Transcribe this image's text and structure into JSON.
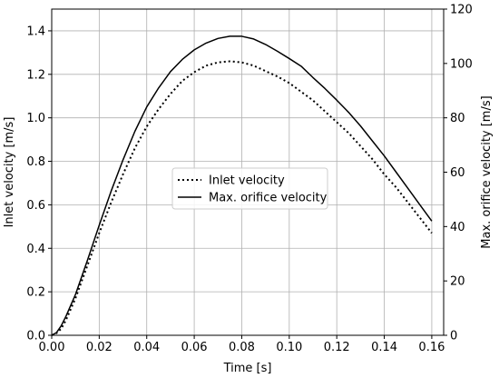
{
  "chart_data": {
    "type": "line",
    "xlabel": "Time [s]",
    "ylabel_left": "Inlet velocity [m/s]",
    "ylabel_right": "Max. orifice velocity [m/s]",
    "xlim": [
      0.0,
      0.165
    ],
    "ylim_left": [
      0.0,
      1.5
    ],
    "ylim_right": [
      0,
      120
    ],
    "x_ticks": [
      "0.00",
      "0.02",
      "0.04",
      "0.06",
      "0.08",
      "0.10",
      "0.12",
      "0.14",
      "0.16"
    ],
    "y_left_ticks": [
      "0.0",
      "0.2",
      "0.4",
      "0.6",
      "0.8",
      "1.0",
      "1.2",
      "1.4"
    ],
    "y_right_ticks": [
      "0",
      "20",
      "40",
      "60",
      "80",
      "100",
      "120"
    ],
    "grid": true,
    "legend_position": "center",
    "series": [
      {
        "name": "Inlet velocity",
        "axis": "left",
        "style": "dotted",
        "color": "#000000",
        "x": [
          0.0,
          0.002,
          0.004,
          0.006,
          0.008,
          0.01,
          0.015,
          0.02,
          0.025,
          0.03,
          0.035,
          0.04,
          0.045,
          0.05,
          0.055,
          0.06,
          0.065,
          0.07,
          0.075,
          0.08,
          0.085,
          0.09,
          0.095,
          0.1,
          0.105,
          0.11,
          0.115,
          0.12,
          0.125,
          0.13,
          0.135,
          0.14,
          0.145,
          0.15,
          0.155,
          0.16
        ],
        "y": [
          0.0,
          0.01,
          0.03,
          0.07,
          0.12,
          0.17,
          0.32,
          0.47,
          0.61,
          0.74,
          0.86,
          0.96,
          1.04,
          1.11,
          1.17,
          1.21,
          1.24,
          1.255,
          1.26,
          1.255,
          1.24,
          1.215,
          1.19,
          1.16,
          1.12,
          1.08,
          1.03,
          0.98,
          0.93,
          0.87,
          0.81,
          0.74,
          0.68,
          0.61,
          0.54,
          0.47
        ]
      },
      {
        "name": "Max. orifice velocity",
        "axis": "right",
        "style": "solid",
        "color": "#000000",
        "x": [
          0.0,
          0.002,
          0.004,
          0.006,
          0.008,
          0.01,
          0.015,
          0.02,
          0.025,
          0.03,
          0.035,
          0.04,
          0.045,
          0.05,
          0.055,
          0.06,
          0.065,
          0.07,
          0.075,
          0.08,
          0.085,
          0.09,
          0.095,
          0.1,
          0.105,
          0.11,
          0.115,
          0.12,
          0.125,
          0.13,
          0.135,
          0.14,
          0.145,
          0.15,
          0.155,
          0.16
        ],
        "y": [
          0.0,
          1.0,
          3.5,
          7.0,
          11.0,
          15.0,
          27.5,
          40.5,
          53.0,
          64.5,
          75.0,
          84.0,
          91.0,
          97.0,
          101.5,
          105.0,
          107.5,
          109.2,
          110.0,
          110.0,
          109.0,
          107.0,
          104.5,
          101.8,
          99.0,
          94.8,
          90.8,
          86.5,
          82.0,
          77.0,
          71.5,
          66.0,
          60.0,
          54.0,
          48.0,
          42.0
        ]
      }
    ]
  }
}
